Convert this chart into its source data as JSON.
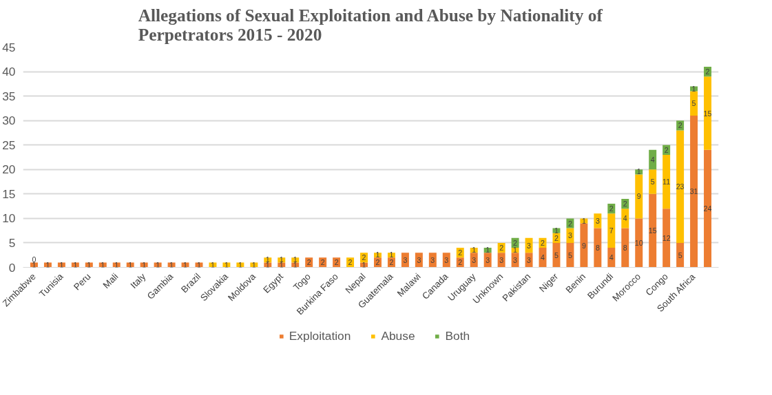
{
  "chart_data": {
    "type": "bar",
    "stacked": true,
    "title": "Allegations of Sexual Exploitation and Abuse by Nationality of Perpetrators 2015 - 2020",
    "categories": [
      "Zimbabwe",
      null,
      "Tunisia",
      null,
      "Peru",
      null,
      "Mali",
      null,
      "Italy",
      null,
      "Gambia",
      null,
      "Brazil",
      null,
      "Slovakia",
      null,
      "Moldova",
      null,
      "Egypt",
      null,
      "Togo",
      null,
      "Burkina Faso",
      null,
      "Nepal",
      null,
      "Guatemala",
      null,
      "Malawi",
      null,
      "Canada",
      null,
      "Uruguay",
      null,
      "Unknown",
      null,
      "Pakistan",
      null,
      "Niger",
      null,
      "Benin",
      null,
      "Burundi",
      null,
      "Morocco",
      null,
      "Congo",
      null,
      "South Africa",
      null
    ],
    "series": [
      {
        "name": "Exploitation",
        "color": "#ed7d31",
        "values": [
          1,
          1,
          1,
          1,
          1,
          1,
          1,
          1,
          1,
          1,
          1,
          1,
          1,
          0,
          0,
          0,
          0,
          1,
          1,
          1,
          2,
          2,
          2,
          0,
          1,
          2,
          2,
          3,
          3,
          3,
          3,
          2,
          3,
          3,
          3,
          3,
          3,
          4,
          5,
          5,
          9,
          8,
          4,
          8,
          10,
          15,
          12,
          5,
          31,
          24
        ],
        "value_labels": [
          "1",
          "1",
          "1",
          "1",
          "1",
          "1",
          "1",
          "1",
          "1",
          "1",
          "1",
          "1",
          "1",
          null,
          null,
          null,
          null,
          "1",
          "1",
          "1",
          "2",
          "2",
          "2",
          null,
          "1",
          "2",
          "2",
          "3",
          "3",
          "3",
          "3",
          "2",
          "3",
          "3",
          "3",
          "3",
          "3",
          "4",
          "5",
          "5",
          "9",
          "8",
          "4",
          "8",
          "10",
          "15",
          "12",
          "5",
          "31",
          "24"
        ]
      },
      {
        "name": "Abuse",
        "color": "#ffc000",
        "values": [
          0,
          0,
          0,
          0,
          0,
          0,
          0,
          0,
          0,
          0,
          0,
          0,
          0,
          1,
          1,
          1,
          1,
          1,
          1,
          1,
          0,
          0,
          0,
          2,
          2,
          1,
          1,
          0,
          0,
          0,
          0,
          2,
          1,
          0,
          2,
          1,
          3,
          2,
          2,
          3,
          1,
          3,
          7,
          4,
          9,
          5,
          11,
          23,
          5,
          15
        ],
        "value_labels": [
          "0",
          null,
          null,
          null,
          null,
          null,
          null,
          null,
          null,
          null,
          null,
          null,
          null,
          "1",
          "1",
          "1",
          "1",
          "1",
          "1",
          "1",
          null,
          null,
          null,
          "2",
          "2",
          "1",
          "1",
          null,
          null,
          null,
          null,
          "2",
          "1",
          null,
          "2",
          "1",
          "3",
          "2",
          "2",
          "3",
          "1",
          "3",
          "7",
          "4",
          "9",
          "5",
          "11",
          "23",
          "5",
          "15"
        ]
      },
      {
        "name": "Both",
        "color": "#70ad47",
        "values": [
          0,
          0,
          0,
          0,
          0,
          0,
          0,
          0,
          0,
          0,
          0,
          0,
          0,
          0,
          0,
          0,
          0,
          0,
          0,
          0,
          0,
          0,
          0,
          0,
          0,
          0,
          0,
          0,
          0,
          0,
          0,
          0,
          0,
          1,
          0,
          2,
          0,
          0,
          1,
          2,
          0,
          0,
          2,
          2,
          1,
          4,
          2,
          2,
          1,
          2
        ],
        "value_labels": [
          null,
          null,
          null,
          null,
          null,
          null,
          null,
          null,
          null,
          null,
          null,
          null,
          null,
          null,
          null,
          null,
          null,
          null,
          null,
          null,
          null,
          null,
          null,
          null,
          null,
          null,
          null,
          null,
          null,
          null,
          null,
          null,
          null,
          "1",
          null,
          "2",
          null,
          null,
          "1",
          "2",
          null,
          null,
          "2",
          "2",
          "1",
          "4",
          "2",
          "2",
          "1",
          "2"
        ]
      }
    ],
    "ylim": [
      0,
      45
    ],
    "yticks": [
      0,
      5,
      10,
      15,
      20,
      25,
      30,
      35,
      40,
      45
    ],
    "grid": "y",
    "legend": "bottom"
  }
}
